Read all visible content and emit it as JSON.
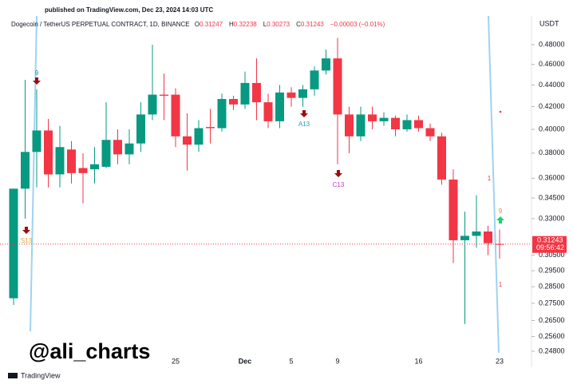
{
  "header": {
    "published": "published on TradingView.com, Dec 23, 2024 14:03 UTC"
  },
  "chart_data": {
    "type": "candlestick",
    "title": "Dogecoin / TetherUS PERPETUAL CONTRACT, 1D, BINANCE",
    "ohlc_letters": [
      "O",
      "H",
      "L",
      "C"
    ],
    "change": "−0.00003 (−0.01%)",
    "currency": "USDT",
    "countdown": "09:56:42",
    "watermark": "@ali_charts",
    "brand": "TradingView",
    "log_scale": true,
    "up_color": "#089981",
    "down_color": "#f23645",
    "categories": [
      null,
      null,
      null,
      null,
      null,
      null,
      null,
      null,
      null,
      null,
      null,
      null,
      null,
      null,
      "25",
      null,
      null,
      null,
      null,
      null,
      "Dec",
      null,
      null,
      null,
      "5",
      null,
      null,
      null,
      "9",
      null,
      null,
      null,
      null,
      null,
      null,
      "16",
      null,
      null,
      null,
      null,
      null,
      null,
      "23"
    ],
    "open": [
      0.278,
      0.352,
      0.381,
      0.399,
      0.363,
      0.383,
      0.368,
      0.367,
      0.369,
      0.391,
      0.379,
      0.388,
      0.413,
      0.431,
      0.431,
      0.394,
      0.387,
      0.402,
      0.401,
      0.427,
      0.422,
      0.442,
      0.424,
      0.407,
      0.433,
      0.428,
      0.436,
      0.454,
      0.466,
      0.413,
      0.394,
      0.413,
      0.407,
      0.41,
      0.4,
      0.408,
      0.401,
      0.394,
      0.359,
      0.315,
      0.318,
      0.321,
      0.31247
    ],
    "high": [
      0.352,
      0.445,
      0.436,
      0.409,
      0.403,
      0.39,
      0.38,
      0.385,
      0.424,
      0.4,
      0.4,
      0.424,
      0.48,
      0.451,
      0.437,
      0.414,
      0.408,
      0.418,
      0.432,
      0.43,
      0.453,
      0.466,
      0.432,
      0.44,
      0.438,
      0.44,
      0.458,
      0.475,
      0.487,
      0.42,
      0.42,
      0.42,
      0.415,
      0.412,
      0.413,
      0.412,
      0.405,
      0.397,
      0.367,
      0.335,
      0.347,
      0.325,
      0.32238
    ],
    "low": [
      0.274,
      0.33,
      0.353,
      0.353,
      0.353,
      0.356,
      0.341,
      0.356,
      0.368,
      0.371,
      0.371,
      0.381,
      0.408,
      0.408,
      0.385,
      0.366,
      0.381,
      0.388,
      0.398,
      0.417,
      0.418,
      0.408,
      0.401,
      0.401,
      0.42,
      0.42,
      0.43,
      0.45,
      0.371,
      0.38,
      0.39,
      0.4,
      0.403,
      0.394,
      0.398,
      0.398,
      0.39,
      0.355,
      0.3,
      0.263,
      0.31,
      0.305,
      0.30273
    ],
    "close": [
      0.352,
      0.381,
      0.399,
      0.363,
      0.385,
      0.364,
      0.364,
      0.371,
      0.391,
      0.379,
      0.388,
      0.413,
      0.431,
      0.43,
      0.394,
      0.387,
      0.401,
      0.401,
      0.427,
      0.422,
      0.442,
      0.424,
      0.407,
      0.433,
      0.428,
      0.436,
      0.454,
      0.466,
      0.413,
      0.394,
      0.413,
      0.407,
      0.41,
      0.4,
      0.408,
      0.401,
      0.394,
      0.359,
      0.315,
      0.318,
      0.321,
      0.313,
      0.31243
    ],
    "ylim": [
      0.2417,
      0.5106
    ],
    "yticks": [
      {
        "value": 0.48,
        "label": "0.48000"
      },
      {
        "value": 0.46,
        "label": "0.46000"
      },
      {
        "value": 0.44,
        "label": "0.44000"
      },
      {
        "value": 0.42,
        "label": "0.42000"
      },
      {
        "value": 0.4,
        "label": "0.40000"
      },
      {
        "value": 0.38,
        "label": "0.38000"
      },
      {
        "value": 0.36,
        "label": "0.36000"
      },
      {
        "value": 0.345,
        "label": "0.34500"
      },
      {
        "value": 0.33,
        "label": "0.33000"
      },
      {
        "value": 0.305,
        "label": "0.30500"
      },
      {
        "value": 0.295,
        "label": "0.29500"
      },
      {
        "value": 0.285,
        "label": "0.28500"
      },
      {
        "value": 0.275,
        "label": "0.27500"
      },
      {
        "value": 0.265,
        "label": "0.26500"
      },
      {
        "value": 0.256,
        "label": "0.25600"
      },
      {
        "value": 0.248,
        "label": "0.24800"
      }
    ],
    "annotations": [
      {
        "text": "9",
        "color": "#089981"
      },
      {
        "text": "S13",
        "color": "#e8a33a"
      },
      {
        "text": "A13",
        "color": "#2a9bb0"
      },
      {
        "text": "C13",
        "color": "#c03ac0"
      },
      {
        "text": "9",
        "color": "#f57c3a"
      },
      {
        "text": "1",
        "color": "#f23645"
      },
      {
        "text": "1",
        "color": "#f23645"
      }
    ]
  }
}
